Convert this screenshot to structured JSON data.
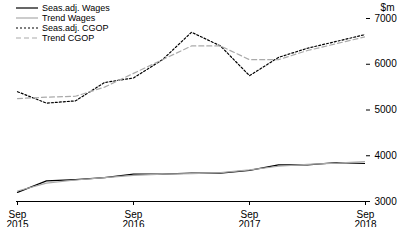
{
  "chart_data": {
    "type": "line",
    "y_label": "$m",
    "categories": [
      "Sep\n2015",
      null,
      null,
      null,
      "Sep\n2016",
      null,
      null,
      null,
      "Sep\n2017",
      null,
      null,
      null,
      "Sep\n2018"
    ],
    "series": [
      {
        "name": "Seas.adj. Wages",
        "color": "#000000",
        "line_style": "solid",
        "values": [
          3200,
          3450,
          3480,
          3520,
          3600,
          3600,
          3620,
          3620,
          3680,
          3800,
          3800,
          3850,
          3830
        ]
      },
      {
        "name": "Trend Wages",
        "color": "#aaaaaa",
        "line_style": "solid",
        "values": [
          3230,
          3400,
          3470,
          3520,
          3570,
          3600,
          3610,
          3630,
          3690,
          3770,
          3810,
          3840,
          3870
        ]
      },
      {
        "name": "Seas.adj. CGOP",
        "color": "#000000",
        "line_style": "dotted",
        "values": [
          5400,
          5150,
          5200,
          5600,
          5700,
          6100,
          6700,
          6400,
          5750,
          6150,
          6350,
          6500,
          6650
        ]
      },
      {
        "name": "Trend CGOP",
        "color": "#aaaaaa",
        "line_style": "dashed",
        "values": [
          5250,
          5280,
          5300,
          5500,
          5800,
          6100,
          6400,
          6400,
          6100,
          6100,
          6300,
          6450,
          6600
        ]
      }
    ],
    "ylim": [
      3000,
      7000
    ],
    "yticks": [
      3000,
      4000,
      5000,
      6000,
      7000
    ],
    "grid": false,
    "legend": "top-left"
  }
}
